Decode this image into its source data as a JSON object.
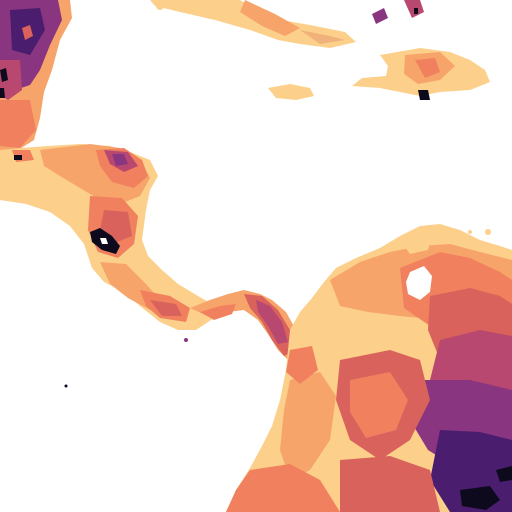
{
  "map": {
    "palette": {
      "water": "#ffffff",
      "very_low": "#fcd08a",
      "low": "#f7a46a",
      "mid_low": "#f0805e",
      "mid": "#d9635c",
      "mid_high": "#b8486f",
      "high": "#8a3580",
      "very_high": "#4b1d6e",
      "extreme": "#0d0a1e"
    },
    "regions": [
      "yucatan-peninsula",
      "cuba",
      "hispaniola",
      "jamaica",
      "puerto-rico",
      "central-america",
      "panama",
      "south-america-north",
      "lake-nicaragua",
      "lake-maracaibo"
    ]
  }
}
